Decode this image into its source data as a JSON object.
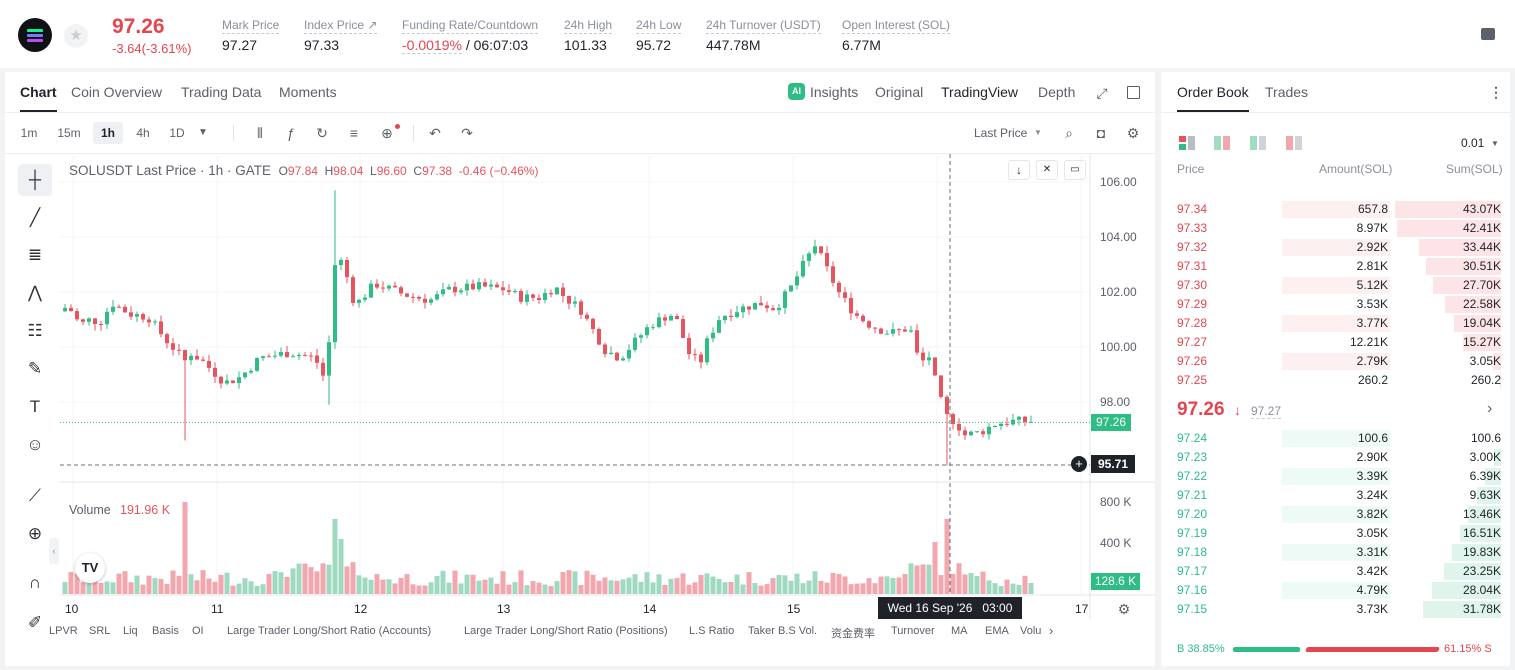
{
  "ticker": {
    "price": "97.26",
    "change": "-3.64(-3.61%)"
  },
  "stats": [
    {
      "label": "Mark Price",
      "value": "97.27"
    },
    {
      "label": "Index Price ↗",
      "value": "97.33"
    },
    {
      "label": "Funding Rate/Countdown",
      "value_red": "-0.0019%",
      "value": " / 06:07:03"
    },
    {
      "label": "24h High",
      "value": "101.33"
    },
    {
      "label": "24h Low",
      "value": "95.72"
    },
    {
      "label": "24h Turnover (USDT)",
      "value": "447.78M"
    },
    {
      "label": "Open Interest (SOL)",
      "value": "6.77M"
    }
  ],
  "chart_tabs": [
    "Chart",
    "Coin Overview",
    "Trading Data",
    "Moments"
  ],
  "view_tabs": {
    "insights": "Insights",
    "original": "Original",
    "tradingview": "TradingView",
    "depth": "Depth"
  },
  "intervals": [
    "1m",
    "15m",
    "1h",
    "4h",
    "1D"
  ],
  "price_source": "Last Price",
  "legend": {
    "pair": "SOLUSDT Last Price · 1h · GATE",
    "o": "97.84",
    "h": "98.04",
    "l": "96.60",
    "c": "97.38",
    "chg": "-0.46 (−0.46%)",
    "o_lbl": "O",
    "h_lbl": "H",
    "l_lbl": "L",
    "c_lbl": "C"
  },
  "volume_label": "Volume",
  "volume_value": "191.96 K",
  "price_badge": "97.26",
  "cursor_badge": "95.71",
  "vol_badge": "128.6 K",
  "crosshair_date": "Wed 16 Sep '26   03:00",
  "bottom_indicators": [
    "LPVR",
    "SRL",
    "Liq",
    "Basis",
    "OI",
    "Large Trader Long/Short Ratio (Accounts)",
    "Large Trader Long/Short Ratio (Positions)",
    "L.S Ratio",
    "Taker B.S Vol.",
    "资金费率",
    "Turnover",
    "MA",
    "EMA",
    "Volu"
  ],
  "order_book": {
    "tabs": [
      "Order Book",
      "Trades"
    ],
    "precision": "0.01",
    "headers": [
      "Price",
      "Amount(SOL)",
      "Sum(SOL)"
    ],
    "asks": [
      [
        "97.34",
        "657.8",
        "43.07K"
      ],
      [
        "97.33",
        "8.97K",
        "42.41K"
      ],
      [
        "97.32",
        "2.92K",
        "33.44K"
      ],
      [
        "97.31",
        "2.81K",
        "30.51K"
      ],
      [
        "97.30",
        "5.12K",
        "27.70K"
      ],
      [
        "97.29",
        "3.53K",
        "22.58K"
      ],
      [
        "97.28",
        "3.77K",
        "19.04K"
      ],
      [
        "97.27",
        "12.21K",
        "15.27K"
      ],
      [
        "97.26",
        "2.79K",
        "3.05K"
      ],
      [
        "97.25",
        "260.2",
        "260.2"
      ]
    ],
    "mid_price": "97.26",
    "mid_mark": "97.27",
    "bids": [
      [
        "97.24",
        "100.6",
        "100.6"
      ],
      [
        "97.23",
        "2.90K",
        "3.00K"
      ],
      [
        "97.22",
        "3.39K",
        "6.39K"
      ],
      [
        "97.21",
        "3.24K",
        "9.63K"
      ],
      [
        "97.20",
        "3.82K",
        "13.46K"
      ],
      [
        "97.19",
        "3.05K",
        "16.51K"
      ],
      [
        "97.18",
        "3.31K",
        "19.83K"
      ],
      [
        "97.17",
        "3.42K",
        "23.25K"
      ],
      [
        "97.16",
        "4.79K",
        "28.04K"
      ],
      [
        "97.15",
        "3.73K",
        "31.78K"
      ]
    ],
    "buy_ratio": "B 38.85%",
    "sell_ratio": "61.15% S",
    "buy_fraction": 0.3885
  },
  "chart_data": {
    "type": "candlestick",
    "y_ticks": [
      "106.00",
      "104.00",
      "102.00",
      "100.00",
      "98.00"
    ],
    "x_ticks": [
      "10",
      "11",
      "12",
      "13",
      "14",
      "15",
      "16",
      "17"
    ],
    "vol_ticks": [
      "800 K",
      "400 K"
    ],
    "ylim": [
      95,
      106.5
    ],
    "up_color": "#2ebd85",
    "down_color": "#e5545f"
  }
}
